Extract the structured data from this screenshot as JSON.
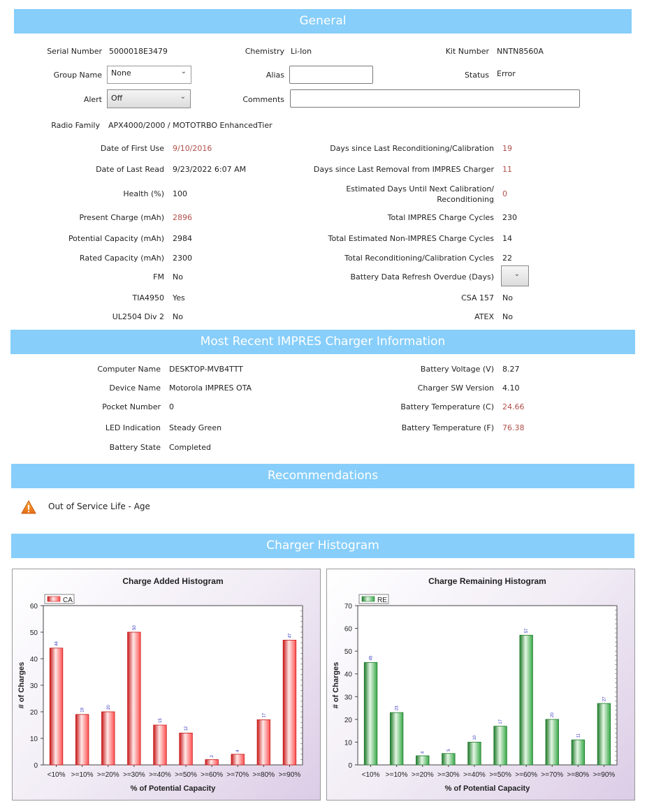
{
  "general": {
    "title": "General",
    "serial_label": "Serial Number",
    "serial_value": "5000018E3479",
    "chemistry_label": "Chemistry",
    "chemistry_value": "Li-Ion",
    "kit_label": "Kit Number",
    "kit_value": "NNTN8560A",
    "group_label": "Group Name",
    "group_value": "None",
    "alias_label": "Alias",
    "alias_value": "",
    "status_label": "Status",
    "status_value": "Error",
    "alert_label": "Alert",
    "alert_value": "Off",
    "comments_label": "Comments",
    "comments_value": "",
    "radio_family_label": "Radio Family",
    "radio_family_value": "APX4000/2000 / MOTOTRBO EnhancedTier",
    "first_use_label": "Date of First Use",
    "first_use_value": "9/10/2016",
    "last_read_label": "Date of Last Read",
    "last_read_value": "9/23/2022 6:07 AM",
    "health_label": "Health (%)",
    "health_value": "100",
    "present_charge_label": "Present Charge (mAh)",
    "present_charge_value": "2896",
    "potential_capacity_label": "Potential Capacity (mAh)",
    "potential_capacity_value": "2984",
    "rated_capacity_label": "Rated Capacity (mAh)",
    "rated_capacity_value": "2300",
    "fm_label": "FM",
    "fm_value": "No",
    "tia_label": "TIA4950",
    "tia_value": "Yes",
    "ul_label": "UL2504 Div 2",
    "ul_value": "No",
    "days_recond_label": "Days since Last Reconditioning/Calibration",
    "days_recond_value": "19",
    "days_removal_label": "Days since Last Removal from IMPRES Charger",
    "days_removal_value": "11",
    "est_days_label_1": "Estimated Days Until Next Calibration/",
    "est_days_label_2": "Reconditioning",
    "est_days_value": "0",
    "total_impres_label": "Total IMPRES Charge Cycles",
    "total_impres_value": "230",
    "total_non_impres_label": "Total Estimated Non-IMPRES Charge Cycles",
    "total_non_impres_value": "14",
    "total_recond_label": "Total Reconditioning/Calibration Cycles",
    "total_recond_value": "22",
    "refresh_overdue_label": "Battery Data Refresh Overdue (Days)",
    "refresh_overdue_value": "",
    "csa_label": "CSA 157",
    "csa_value": "No",
    "atex_label": "ATEX",
    "atex_value": "No"
  },
  "charger": {
    "title": "Most Recent IMPRES Charger Information",
    "computer_label": "Computer Name",
    "computer_value": "DESKTOP-MVB4TTT",
    "device_label": "Device Name",
    "device_value": "Motorola IMPRES OTA",
    "pocket_label": "Pocket Number",
    "pocket_value": "0",
    "led_label": "LED Indication",
    "led_value": "Steady Green",
    "state_label": "Battery State",
    "state_value": "Completed",
    "voltage_label": "Battery Voltage (V)",
    "voltage_value": "8.27",
    "sw_label": "Charger SW Version",
    "sw_value": "4.10",
    "temp_c_label": "Battery Temperature (C)",
    "temp_c_value": "24.66",
    "temp_f_label": "Battery Temperature (F)",
    "temp_f_value": "76.38"
  },
  "recommendations": {
    "title": "Recommendations",
    "items": [
      "Out of Service Life - Age"
    ],
    "icon": "warning-icon"
  },
  "histogram_section": {
    "title": "Charger Histogram"
  },
  "colors": {
    "banner": "#87CEFA",
    "highlight_text": "#b0504a",
    "ca_bar": "#e03030",
    "re_bar": "#2e9a3a"
  },
  "chart_data": [
    {
      "type": "bar",
      "title": "Charge Added Histogram",
      "xlabel": "% of Potential Capacity",
      "ylabel": "# of Charges",
      "legend": "CA",
      "categories": [
        "<10%",
        ">=10%",
        ">=20%",
        ">=30%",
        ">=40%",
        ">=50%",
        ">=60%",
        ">=70%",
        ">=80%",
        ">=90%"
      ],
      "values": [
        44,
        19,
        20,
        50,
        15,
        12,
        2,
        4,
        17,
        47
      ],
      "ylim": [
        0,
        60
      ],
      "yticks": [
        0,
        10,
        20,
        30,
        40,
        50,
        60
      ]
    },
    {
      "type": "bar",
      "title": "Charge Remaining Histogram",
      "xlabel": "% of Potential Capacity",
      "ylabel": "# of Charges",
      "legend": "RE",
      "categories": [
        "<10%",
        ">=10%",
        ">=20%",
        ">=30%",
        ">=40%",
        ">=50%",
        ">=60%",
        ">=70%",
        ">=80%",
        ">=90%"
      ],
      "values": [
        45,
        23,
        4,
        5,
        10,
        17,
        57,
        20,
        11,
        27
      ],
      "ylim": [
        0,
        70
      ],
      "yticks": [
        0,
        10,
        20,
        30,
        40,
        50,
        60,
        70
      ]
    }
  ]
}
